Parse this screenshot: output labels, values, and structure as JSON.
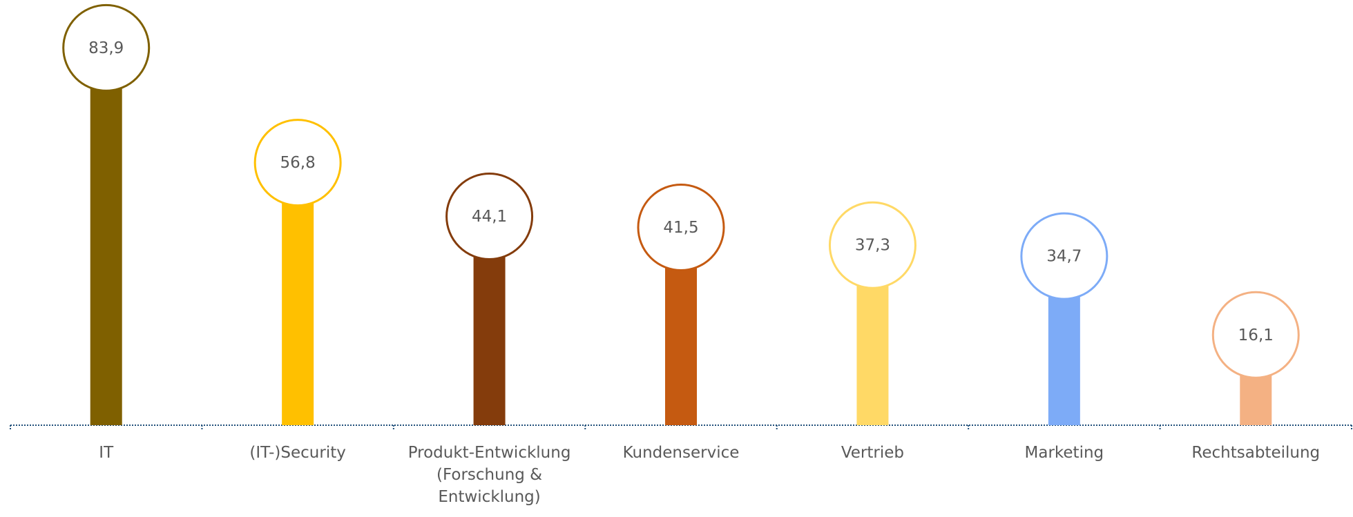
{
  "chart_data": {
    "type": "lollipop",
    "categories": [
      "IT",
      "(IT-)Security",
      "Produkt-Entwicklung (Forschung & Entwicklung)",
      "Kundenservice",
      "Vertrieb",
      "Marketing",
      "Rechtsabteilung"
    ],
    "values": [
      83.9,
      56.8,
      44.1,
      41.5,
      37.3,
      34.7,
      16.1
    ],
    "value_labels": [
      "83,9",
      "56,8",
      "44,1",
      "41,5",
      "37,3",
      "34,7",
      "16,1"
    ],
    "colors": [
      "#7f6000",
      "#ffc000",
      "#843c0c",
      "#c55a11",
      "#ffd966",
      "#7dabf7",
      "#f4b183"
    ],
    "ylim": [
      0,
      90
    ]
  }
}
